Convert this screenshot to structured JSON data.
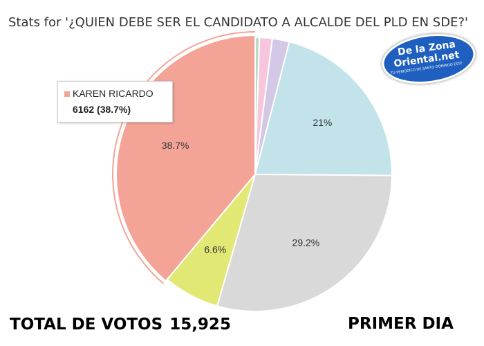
{
  "title": "Stats for '¿QUIEN DEBE SER EL CANDIDATO A ALCALDE DEL PLD EN SDE?'",
  "logo": {
    "line1": "De la Zona",
    "line2": "Oriental.net",
    "tagline": "TU PERIODICO DE SANTO DOMINGO ESTE"
  },
  "tooltip": {
    "name": "KAREN RICARDO",
    "value": "6162 (38.7%)",
    "color": "#f4a496"
  },
  "footer": {
    "total_label": "TOTAL DE VOTOS",
    "total_value": "15,925",
    "day_label": "PRIMER DIA"
  },
  "chart_data": {
    "type": "pie",
    "total": 15925,
    "slices": [
      {
        "value": 0.5,
        "label": "",
        "color": "#b8dcc8"
      },
      {
        "value": 1.5,
        "label": "",
        "color": "#f7c6dc"
      },
      {
        "value": 2.0,
        "label": "",
        "color": "#d3c8e6"
      },
      {
        "value": 21.0,
        "label": "21%",
        "color": "#c2e3ea"
      },
      {
        "value": 29.2,
        "label": "29.2%",
        "color": "#d9d9d9"
      },
      {
        "value": 6.6,
        "label": "6.6%",
        "color": "#e2e874"
      },
      {
        "value": 38.7,
        "label": "38.7%",
        "color": "#f4a496",
        "name": "KAREN RICARDO",
        "votes": 6162
      }
    ]
  }
}
